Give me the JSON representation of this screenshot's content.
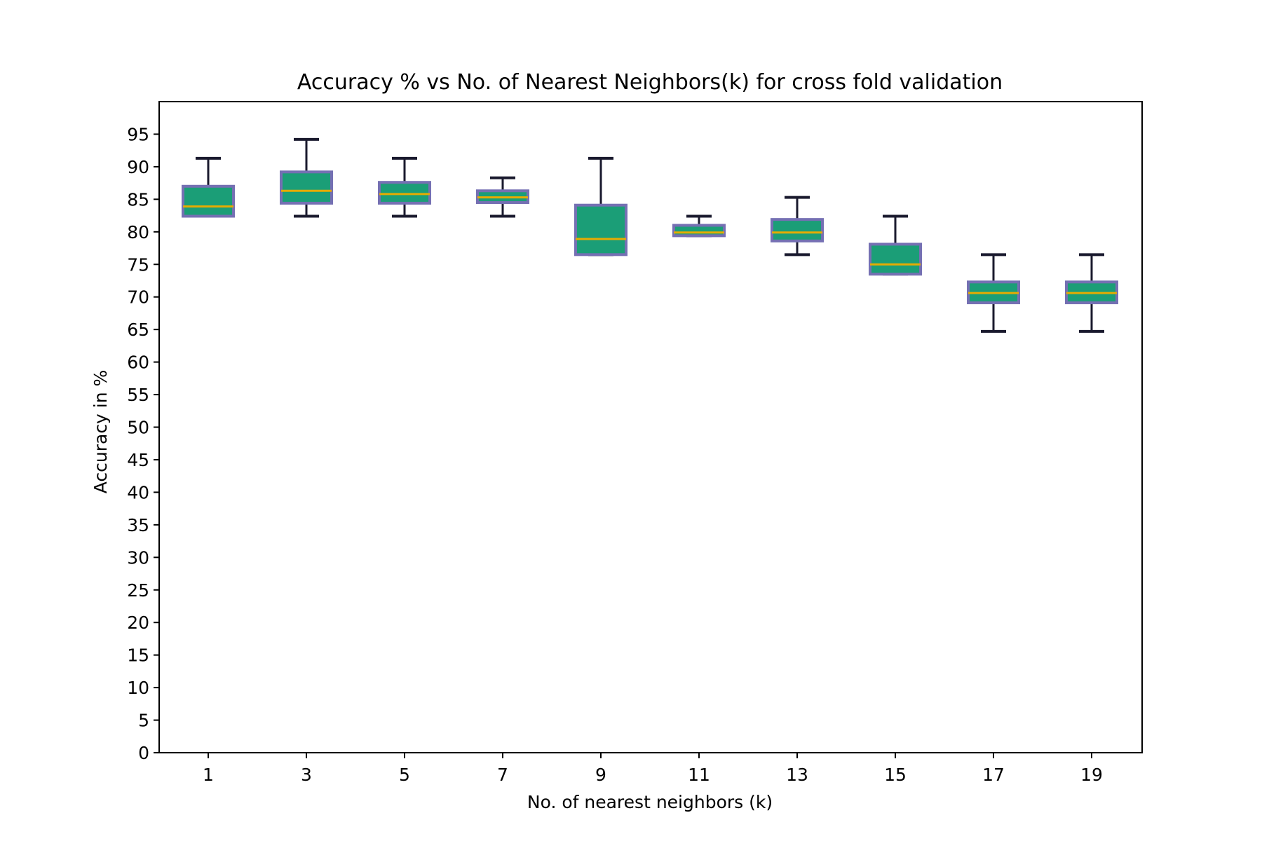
{
  "chart_data": {
    "type": "box",
    "title": "Accuracy % vs No. of Nearest Neighbors(k) for cross fold validation",
    "xlabel": "No. of nearest neighbors (k)",
    "ylabel": "Accuracy in %",
    "ylim": [
      0,
      100
    ],
    "yticks": [
      0,
      5,
      10,
      15,
      20,
      25,
      30,
      35,
      40,
      45,
      50,
      55,
      60,
      65,
      70,
      75,
      80,
      85,
      90,
      95
    ],
    "categories": [
      "1",
      "3",
      "5",
      "7",
      "9",
      "11",
      "13",
      "15",
      "17",
      "19"
    ],
    "boxes": [
      {
        "k": "1",
        "whisker_low": 82.4,
        "q1": 82.4,
        "median": 83.9,
        "q3": 87.0,
        "whisker_high": 91.3
      },
      {
        "k": "3",
        "whisker_low": 82.4,
        "q1": 84.4,
        "median": 86.3,
        "q3": 89.2,
        "whisker_high": 94.2
      },
      {
        "k": "5",
        "whisker_low": 82.4,
        "q1": 84.4,
        "median": 85.8,
        "q3": 87.6,
        "whisker_high": 91.3
      },
      {
        "k": "7",
        "whisker_low": 82.4,
        "q1": 84.5,
        "median": 85.3,
        "q3": 86.3,
        "whisker_high": 88.3
      },
      {
        "k": "9",
        "whisker_low": 76.5,
        "q1": 76.5,
        "median": 78.9,
        "q3": 84.1,
        "whisker_high": 91.3
      },
      {
        "k": "11",
        "whisker_low": 79.4,
        "q1": 79.4,
        "median": 79.9,
        "q3": 81.0,
        "whisker_high": 82.4
      },
      {
        "k": "13",
        "whisker_low": 76.5,
        "q1": 78.6,
        "median": 79.9,
        "q3": 81.9,
        "whisker_high": 85.3
      },
      {
        "k": "15",
        "whisker_low": 73.5,
        "q1": 73.5,
        "median": 75.0,
        "q3": 78.1,
        "whisker_high": 82.4
      },
      {
        "k": "17",
        "whisker_low": 64.7,
        "q1": 69.1,
        "median": 70.6,
        "q3": 72.3,
        "whisker_high": 76.5
      },
      {
        "k": "19",
        "whisker_low": 64.7,
        "q1": 69.1,
        "median": 70.6,
        "q3": 72.3,
        "whisker_high": 76.5
      }
    ],
    "colors": {
      "box_fill": "#1b9e77",
      "box_edge": "#7570b3",
      "median": "#e6ab02",
      "whisker": "#1a1a2e",
      "axes": "#000000"
    },
    "grid": false,
    "legend": "none"
  }
}
